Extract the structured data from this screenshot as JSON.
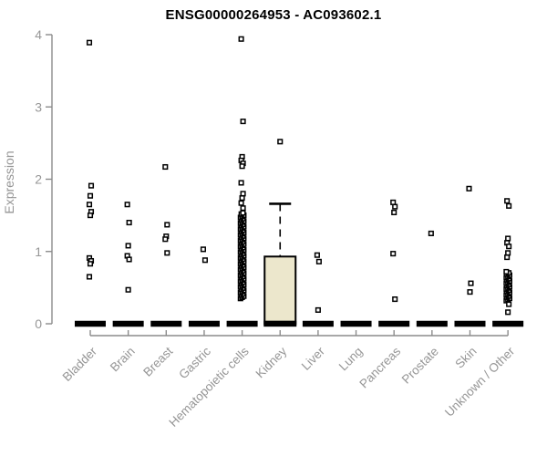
{
  "title": "ENSG00000264953 - AC093602.1",
  "colors": {
    "box_fill": "#ECE7CC",
    "stroke": "#000000",
    "axis_line": "#8c8c8c",
    "axis_text": "#969696",
    "title_text": "#000000",
    "background": "#ffffff"
  },
  "chart_data": {
    "type": "boxplot-scatter",
    "title": "ENSG00000264953 - AC093602.1",
    "xlabel": "",
    "ylabel": "Expression",
    "ylim": [
      0,
      4
    ],
    "y_ticks": [
      "0",
      "1",
      "2",
      "3",
      "4"
    ],
    "grid": "off",
    "legend": "none",
    "categories": [
      "Bladder",
      "Brain",
      "Breast",
      "Gastric",
      "Hematopoietic cells",
      "Kidney",
      "Liver",
      "Lung",
      "Pancreas",
      "Prostate",
      "Skin",
      "Unknown / Other"
    ],
    "series": [
      {
        "name": "Bladder",
        "zero_bar": true,
        "points": [
          3.89,
          1.91,
          1.77,
          1.65,
          1.55,
          1.5,
          0.91,
          0.87,
          0.83,
          0.65
        ],
        "dense_ranges": []
      },
      {
        "name": "Brain",
        "zero_bar": true,
        "points": [
          1.65,
          1.4,
          1.08,
          0.94,
          0.89,
          0.47
        ],
        "dense_ranges": []
      },
      {
        "name": "Breast",
        "zero_bar": true,
        "points": [
          2.17,
          1.37,
          1.21,
          1.17,
          0.98
        ],
        "dense_ranges": []
      },
      {
        "name": "Gastric",
        "zero_bar": true,
        "points": [
          1.03,
          0.88
        ],
        "dense_ranges": []
      },
      {
        "name": "Hematopoietic cells",
        "zero_bar": true,
        "points": [
          3.94,
          2.8,
          2.31,
          2.26,
          2.22,
          2.18,
          1.95,
          1.8,
          1.74,
          1.67,
          1.6
        ],
        "dense_ranges": [
          {
            "from": 0.35,
            "to": 1.54
          }
        ]
      },
      {
        "name": "Kidney",
        "zero_bar": true,
        "points": [],
        "dense_ranges": [],
        "box": {
          "q1": 0,
          "median": 0.02,
          "q3": 0.93,
          "whisker_low": 0,
          "whisker_high": 1.66,
          "outliers": [
            2.52
          ]
        }
      },
      {
        "name": "Liver",
        "zero_bar": true,
        "points": [
          0.95,
          0.86,
          0.19
        ],
        "dense_ranges": []
      },
      {
        "name": "Lung",
        "zero_bar": true,
        "points": [],
        "dense_ranges": []
      },
      {
        "name": "Pancreas",
        "zero_bar": true,
        "points": [
          1.68,
          1.62,
          1.54,
          0.97,
          0.34
        ],
        "dense_ranges": []
      },
      {
        "name": "Prostate",
        "zero_bar": true,
        "points": [
          1.25
        ],
        "dense_ranges": []
      },
      {
        "name": "Skin",
        "zero_bar": true,
        "points": [
          1.87,
          0.56,
          0.44
        ],
        "dense_ranges": []
      },
      {
        "name": "Unknown / Other",
        "zero_bar": true,
        "points": [
          1.7,
          1.63,
          1.18,
          1.12,
          1.07,
          0.98,
          0.92,
          0.27,
          0.16
        ],
        "dense_ranges": [
          {
            "from": 0.32,
            "to": 0.72
          }
        ]
      }
    ]
  }
}
